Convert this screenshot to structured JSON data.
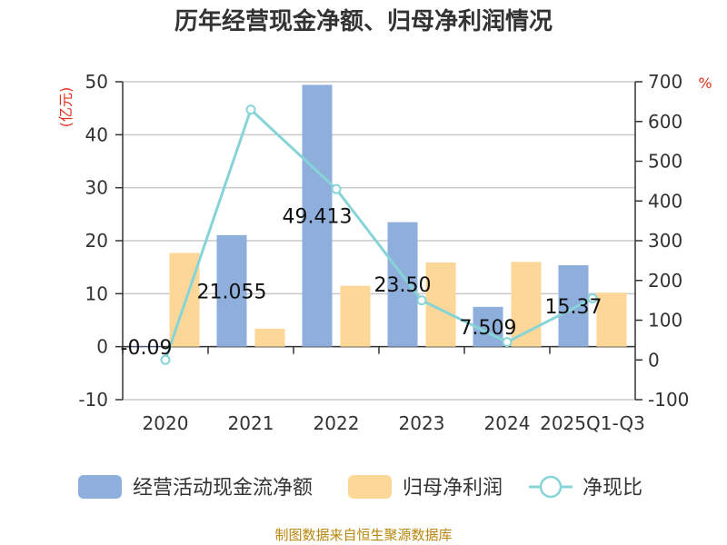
{
  "chart_data": {
    "type": "bar",
    "title": "历年经营现金净额、归母净利润情况",
    "categories": [
      "2020",
      "2021",
      "2022",
      "2023",
      "2024",
      "2025Q1-Q3"
    ],
    "ylabel_left": "(亿元)",
    "ylabel_right": "%",
    "ylim_left": [
      -10,
      50
    ],
    "yticks_left": [
      -10,
      0,
      10,
      20,
      30,
      40,
      50
    ],
    "ylim_right": [
      -100,
      700
    ],
    "yticks_right": [
      -100,
      0,
      100,
      200,
      300,
      400,
      500,
      600,
      700
    ],
    "grid": true,
    "legend_position": "bottom",
    "series": [
      {
        "name": "经营活动现金流净额",
        "kind": "bar",
        "axis": "left",
        "color": "#8eaedc",
        "values": [
          -0.09,
          21.055,
          49.413,
          23.5,
          7.509,
          15.37
        ]
      },
      {
        "name": "归母净利润",
        "kind": "bar",
        "axis": "left",
        "color": "#fdd797",
        "values": [
          17.7,
          3.4,
          11.5,
          15.9,
          16.0,
          10.2
        ]
      },
      {
        "name": "净现比",
        "kind": "line",
        "axis": "right",
        "color": "#86d4d8",
        "values": [
          0,
          630,
          430,
          150,
          45,
          155
        ]
      }
    ],
    "data_labels": [
      "-0.09",
      "21.055",
      "49.413",
      "23.50",
      "7.509",
      "15.37"
    ]
  },
  "source": "制图数据来自恒生聚源数据库"
}
